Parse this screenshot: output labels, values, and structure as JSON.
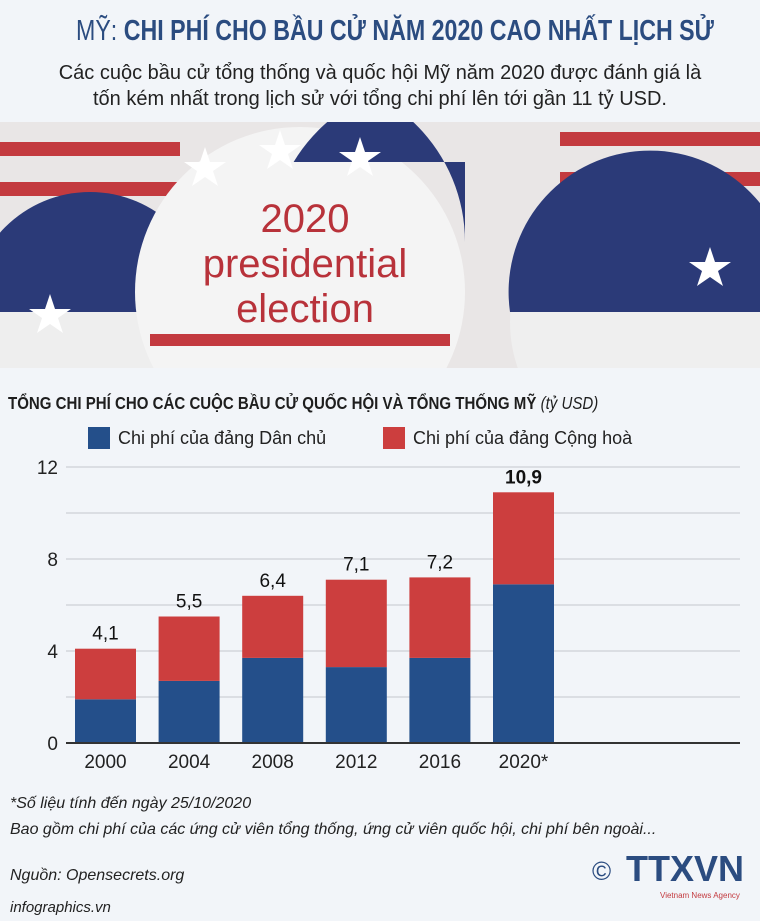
{
  "header": {
    "title_prefix": "MỸ:",
    "title_main": "CHI PHÍ CHO BẦU CỬ NĂM 2020 CAO NHẤT LỊCH SỬ",
    "subtitle_line1": "Các cuộc bầu cử tổng thống và quốc hội Mỹ năm 2020 được đánh giá là",
    "subtitle_line2": "tốn kém nhất trong lịch sử với tổng chi phí lên tới gần 11 tỷ USD."
  },
  "photo": {
    "badge_text": [
      "2020",
      "presidential",
      "election"
    ]
  },
  "chart_data": {
    "type": "bar",
    "stacked": true,
    "title": "TỔNG CHI PHÍ CHO CÁC CUỘC BẦU CỬ QUỐC HỘI VÀ TỔNG THỐNG MỸ",
    "unit": "(tỷ USD)",
    "categories": [
      "2000",
      "2004",
      "2008",
      "2012",
      "2016",
      "2020*"
    ],
    "series": [
      {
        "name": "Chi phí của đảng Dân chủ",
        "color": "#244f8a",
        "values": [
          1.9,
          2.7,
          3.7,
          3.3,
          3.7,
          6.9
        ]
      },
      {
        "name": "Chi phí của đảng Cộng hoà",
        "color": "#cc3e3e",
        "values": [
          2.2,
          2.8,
          2.7,
          3.8,
          3.5,
          4.0
        ]
      }
    ],
    "totals": [
      "4,1",
      "5,5",
      "6,4",
      "7,1",
      "7,2",
      "10,9"
    ],
    "ylim": [
      0,
      12
    ],
    "yticks": [
      "0",
      "4",
      "8",
      "12"
    ],
    "grid": true,
    "legend": "top-left"
  },
  "footer": {
    "note": "*Số liệu tính đến ngày 25/10/2020",
    "desc": "Bao gồm chi phí của các ứng cử viên tổng thống, ứng cử viên quốc hội, chi phí bên ngoài...",
    "source": "Nguồn: Opensecrets.org",
    "site": "infographics.vn",
    "copyright": "©",
    "logo": "TTXVN",
    "logo_sub": "Vietnam News Agency"
  }
}
